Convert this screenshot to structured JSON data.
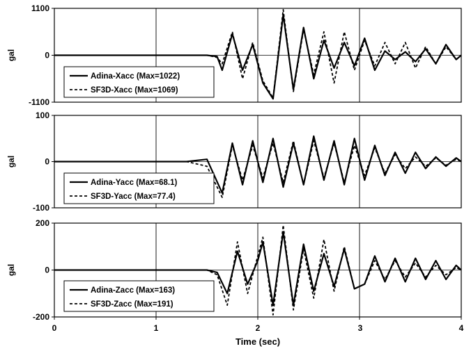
{
  "chart_data": [
    {
      "type": "line",
      "ylabel": "gal",
      "ylim": [
        -1100,
        1100
      ],
      "yticks": [
        "1100",
        "0",
        "-1100"
      ],
      "xlim": [
        0,
        4
      ],
      "grid": "vertical",
      "legend_placement": "bottom-left",
      "series": [
        {
          "name": "Adina-Xacc (Max=1022)",
          "style": "solid",
          "x": [
            0,
            1.5,
            1.6,
            1.65,
            1.75,
            1.85,
            1.95,
            2.05,
            2.15,
            2.25,
            2.35,
            2.45,
            2.55,
            2.65,
            2.75,
            2.85,
            2.95,
            3.05,
            3.15,
            3.25,
            3.35,
            3.45,
            3.55,
            3.65,
            3.75,
            3.85,
            3.95,
            4.0
          ],
          "y": [
            0,
            0,
            -30,
            -350,
            500,
            -350,
            250,
            -650,
            -1022,
            950,
            -800,
            650,
            -550,
            350,
            -300,
            300,
            -250,
            400,
            -350,
            100,
            -100,
            80,
            -150,
            150,
            -200,
            250,
            -100,
            0
          ]
        },
        {
          "name": "SF3D-Xacc (Max=1069)",
          "style": "dashed",
          "x": [
            0,
            1.5,
            1.6,
            1.65,
            1.75,
            1.85,
            1.95,
            2.05,
            2.15,
            2.25,
            2.35,
            2.45,
            2.55,
            2.65,
            2.75,
            2.85,
            2.95,
            3.05,
            3.15,
            3.25,
            3.35,
            3.45,
            3.55,
            3.65,
            3.75,
            3.85,
            3.95,
            4.0
          ],
          "y": [
            0,
            0,
            -50,
            -200,
            550,
            -550,
            300,
            -600,
            -1000,
            1069,
            -850,
            600,
            -450,
            550,
            -650,
            550,
            -350,
            350,
            -250,
            300,
            -200,
            300,
            -300,
            200,
            -200,
            200,
            -100,
            0
          ]
        }
      ]
    },
    {
      "type": "line",
      "ylabel": "gal",
      "ylim": [
        -100,
        100
      ],
      "yticks": [
        "100",
        "0",
        "-100"
      ],
      "xlim": [
        0,
        4
      ],
      "grid": "vertical",
      "legend_placement": "bottom-left",
      "series": [
        {
          "name": "Adina-Yacc (Max=68.1)",
          "style": "solid",
          "x": [
            0,
            1.3,
            1.5,
            1.65,
            1.75,
            1.85,
            1.95,
            2.05,
            2.15,
            2.25,
            2.35,
            2.45,
            2.55,
            2.65,
            2.75,
            2.85,
            2.95,
            3.05,
            3.15,
            3.25,
            3.35,
            3.45,
            3.55,
            3.65,
            3.75,
            3.85,
            3.95,
            4.0
          ],
          "y": [
            0,
            0,
            5,
            -68,
            40,
            -50,
            45,
            -45,
            50,
            -55,
            40,
            -50,
            55,
            -40,
            45,
            -50,
            50,
            -40,
            35,
            -30,
            20,
            -25,
            20,
            -15,
            10,
            -10,
            8,
            0
          ]
        },
        {
          "name": "SF3D-Yacc (Max=77.4)",
          "style": "dashed",
          "x": [
            0,
            1.3,
            1.5,
            1.65,
            1.75,
            1.85,
            1.95,
            2.05,
            2.15,
            2.25,
            2.35,
            2.45,
            2.55,
            2.65,
            2.75,
            2.85,
            2.95,
            3.05,
            3.15,
            3.25,
            3.35,
            3.45,
            3.55,
            3.65,
            3.75,
            3.85,
            3.95,
            4.0
          ],
          "y": [
            0,
            0,
            -10,
            -77.4,
            35,
            -40,
            35,
            -35,
            40,
            -45,
            45,
            -50,
            45,
            -35,
            40,
            -45,
            35,
            -30,
            30,
            -25,
            15,
            -15,
            10,
            -10,
            8,
            -8,
            5,
            0
          ]
        }
      ]
    },
    {
      "type": "line",
      "ylabel": "gal",
      "ylim": [
        -200,
        200
      ],
      "yticks": [
        "200",
        "0",
        "-200"
      ],
      "xlim": [
        0,
        4
      ],
      "grid": "vertical",
      "legend_placement": "bottom-left",
      "series": [
        {
          "name": "Adina-Zacc (Max=163)",
          "style": "solid",
          "x": [
            0,
            1.5,
            1.6,
            1.7,
            1.8,
            1.9,
            2.0,
            2.05,
            2.15,
            2.25,
            2.35,
            2.45,
            2.55,
            2.65,
            2.75,
            2.85,
            2.95,
            3.05,
            3.15,
            3.25,
            3.35,
            3.45,
            3.55,
            3.65,
            3.75,
            3.85,
            3.95,
            4.0
          ],
          "y": [
            0,
            0,
            -10,
            -100,
            80,
            -60,
            40,
            120,
            -150,
            163,
            -150,
            110,
            -90,
            70,
            -70,
            90,
            -80,
            -60,
            60,
            -50,
            50,
            -50,
            50,
            -40,
            40,
            -40,
            20,
            0
          ]
        },
        {
          "name": "SF3D-Zacc (Max=191)",
          "style": "dashed",
          "x": [
            0,
            1.5,
            1.6,
            1.7,
            1.8,
            1.9,
            2.0,
            2.05,
            2.15,
            2.25,
            2.35,
            2.45,
            2.55,
            2.65,
            2.75,
            2.85,
            2.95,
            3.05,
            3.15,
            3.25,
            3.35,
            3.45,
            3.55,
            3.65,
            3.75,
            3.85,
            3.95,
            4.0
          ],
          "y": [
            0,
            0,
            -20,
            -150,
            120,
            -100,
            60,
            140,
            -191,
            191,
            -170,
            90,
            -120,
            130,
            -90,
            100,
            -80,
            -60,
            40,
            -40,
            40,
            -30,
            30,
            -30,
            20,
            -20,
            10,
            0
          ]
        }
      ]
    }
  ],
  "xaxis": {
    "ticks": [
      "0",
      "1",
      "2",
      "3",
      "4"
    ],
    "label": "Time (sec)"
  }
}
